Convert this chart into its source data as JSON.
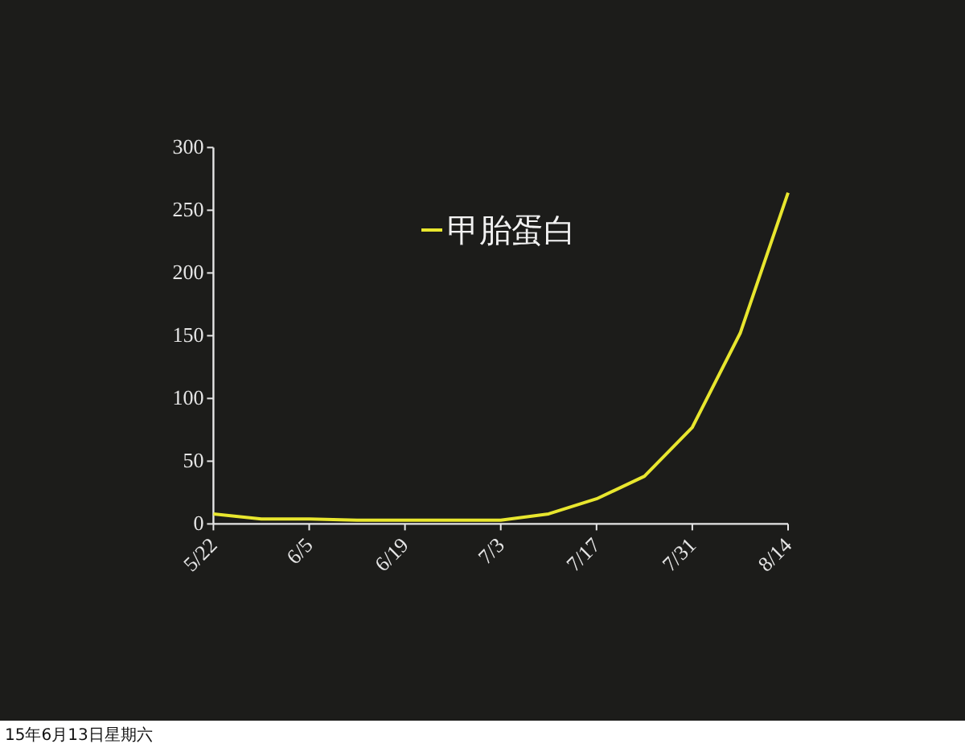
{
  "chart_data": {
    "type": "line",
    "x": [
      "--05-22",
      "--05-29",
      "--06-05",
      "--06-12",
      "--06-19",
      "--06-26",
      "--07-03",
      "--07-10",
      "--07-17",
      "--07-24",
      "--07-31",
      "--08-07",
      "--08-14"
    ],
    "series": [
      {
        "name": "甲胎蛋白",
        "color": "#e8e62e",
        "values": [
          8,
          4,
          4,
          3,
          3,
          3,
          3,
          8,
          20,
          38,
          77,
          152,
          264
        ]
      }
    ],
    "xlim": [
      "--05-22",
      "--08-14"
    ],
    "xticks": [
      {
        "value": "--05-22",
        "label": "5/22"
      },
      {
        "value": "--06-05",
        "label": "6/5"
      },
      {
        "value": "--06-19",
        "label": "6/19"
      },
      {
        "value": "--07-03",
        "label": "7/3"
      },
      {
        "value": "--07-17",
        "label": "7/17"
      },
      {
        "value": "--07-31",
        "label": "7/31"
      },
      {
        "value": "--08-14",
        "label": "8/14"
      }
    ],
    "ylim": [
      0,
      300
    ],
    "yticks": [
      0,
      50,
      100,
      150,
      200,
      250,
      300
    ],
    "legend": "top",
    "grid": false,
    "marker": "none",
    "line_style": "solid",
    "annotations": [
      "15年6月13日星期六"
    ]
  }
}
